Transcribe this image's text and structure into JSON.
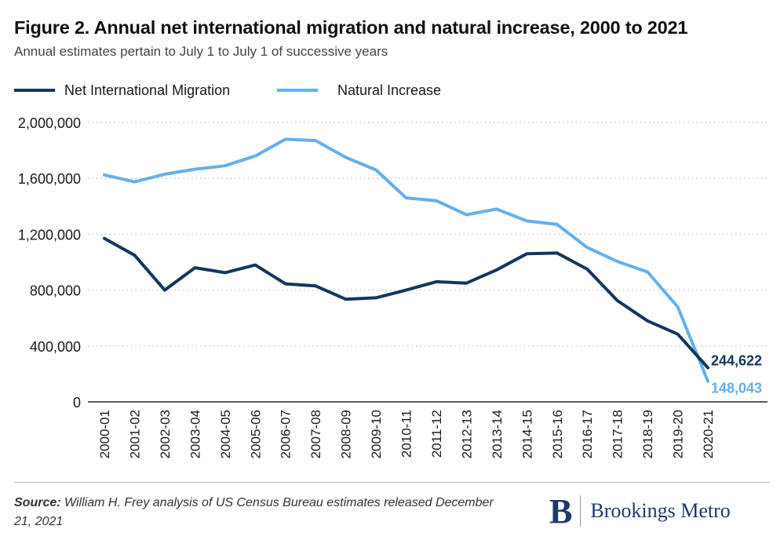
{
  "header": {
    "title": "Figure 2. Annual net international migration and natural increase, 2000 to 2021",
    "subtitle": "Annual estimates pertain to July 1 to July 1 of successive years"
  },
  "footer": {
    "source_label": "Source:",
    "source_text": "William H. Frey analysis of US Census Bureau estimates released December 21, 2021",
    "brand_mark": "B",
    "brand_name": "Brookings Metro"
  },
  "colors": {
    "net_migration": "#14365f",
    "natural_increase": "#63b0ee",
    "grid": "#c8c8c8",
    "axis": "#222222"
  },
  "chart_data": {
    "type": "line",
    "title": "Figure 2. Annual net international migration and natural increase, 2000 to 2021",
    "subtitle": "Annual estimates pertain to July 1 to July 1 of successive years",
    "xlabel": "",
    "ylabel": "",
    "ylim": [
      0,
      2000000
    ],
    "yticks": [
      0,
      400000,
      800000,
      1200000,
      1600000,
      2000000
    ],
    "ytick_labels": [
      "0",
      "400,000",
      "800,000",
      "1,200,000",
      "1,600,000",
      "2,000,000"
    ],
    "grid": "horizontal dotted",
    "legend_position": "top-left",
    "categories": [
      "2000-01",
      "2001-02",
      "2002-03",
      "2003-04",
      "2004-05",
      "2005-06",
      "2006-07",
      "2007-08",
      "2008-09",
      "2009-10",
      "2010-11",
      "2011-12",
      "2012-13",
      "2013-14",
      "2014-15",
      "2015-16",
      "2016-17",
      "2017-18",
      "2018-19",
      "2019-20",
      "2020-21"
    ],
    "series": [
      {
        "name": "Net International Migration",
        "color": "#14365f",
        "values": [
          1170000,
          1050000,
          800000,
          960000,
          925000,
          980000,
          845000,
          830000,
          735000,
          745000,
          800000,
          860000,
          850000,
          945000,
          1060000,
          1065000,
          950000,
          725000,
          580000,
          485000,
          244622
        ],
        "end_label": "244,622"
      },
      {
        "name": "Natural Increase",
        "color": "#63b0ee",
        "values": [
          1625000,
          1575000,
          1630000,
          1665000,
          1690000,
          1760000,
          1880000,
          1870000,
          1750000,
          1660000,
          1460000,
          1440000,
          1340000,
          1380000,
          1295000,
          1270000,
          1105000,
          1005000,
          930000,
          680000,
          148043
        ],
        "end_label": "148,043"
      }
    ]
  }
}
